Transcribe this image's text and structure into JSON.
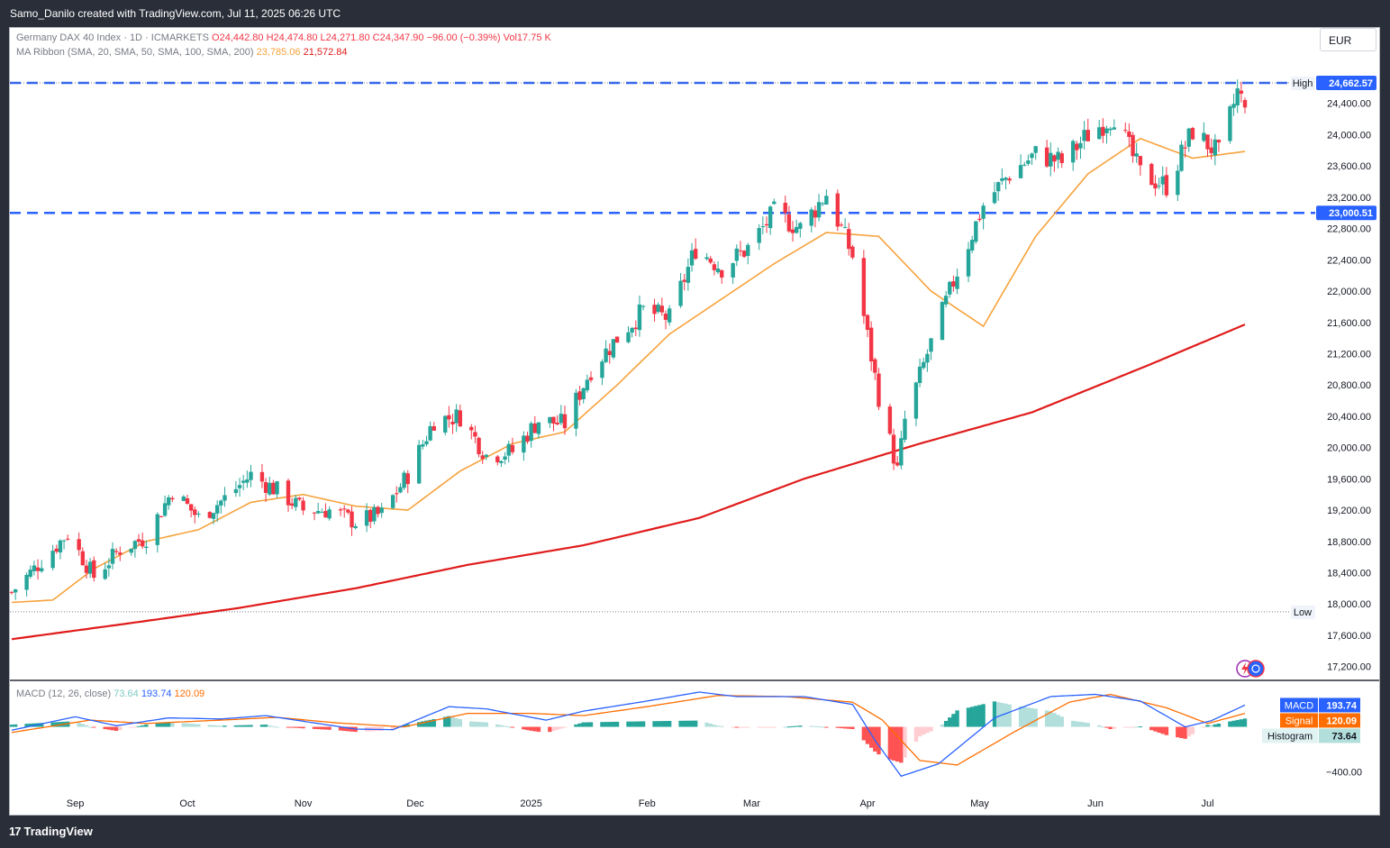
{
  "header": {
    "credit": "Samo_Danilo created with TradingView.com, Jul 11, 2025 06:26 UTC"
  },
  "legend": {
    "symbol": "Germany DAX 40 Index · 1D · ICMARKETS",
    "o_label": "O",
    "o_value": "24,442.80",
    "h_label": "H",
    "h_value": "24,474.80",
    "l_label": "L",
    "l_value": "24,271.80",
    "c_label": "C",
    "c_value": "24,347.90",
    "change": "−96.00 (−0.39%)",
    "vol_label": "Vol",
    "vol_value": "17.75 K",
    "ma_label": "MA Ribbon (SMA, 20, SMA, 50, SMA, 100, SMA, 200)",
    "ma_value1": "23,785.06",
    "ma_value2": "21,572.84"
  },
  "currency": "EUR",
  "footer": {
    "brand": "TradingView",
    "brand_mark": "17"
  },
  "colors": {
    "up": "#26a69a",
    "down": "#f23645",
    "sma20": "#f7a23c",
    "sma200": "#e01b1b",
    "level_line": "#2962ff",
    "macd_line": "#2962ff",
    "signal_line": "#ff6d00",
    "hist_up_strong": "#26a69a",
    "hist_up_weak": "#b2dfdb",
    "hist_down_strong": "#ff5252",
    "hist_down_weak": "#ffcdd2"
  },
  "chart_data": [
    {
      "type": "candlestick",
      "title": "Germany DAX 40 Index · 1D · ICMARKETS",
      "ylim": [
        17000,
        24950
      ],
      "y_ticks": [
        17200,
        17600,
        18000,
        18400,
        18800,
        19200,
        19600,
        20000,
        20400,
        20800,
        21200,
        21600,
        22000,
        22400,
        22800,
        23200,
        23600,
        24000,
        24400
      ],
      "y_tick_labels": [
        "17,200.00",
        "17,600.00",
        "18,000.00",
        "18,400.00",
        "18,800.00",
        "19,200.00",
        "19,600.00",
        "20,000.00",
        "20,400.00",
        "20,800.00",
        "21,200.00",
        "21,600.00",
        "22,000.00",
        "22,400.00",
        "22,800.00",
        "23,200.00",
        "23,600.00",
        "24,000.00",
        "24,400.00"
      ],
      "x_ticks": [
        {
          "label": "Sep",
          "date": "2024-09-01"
        },
        {
          "label": "Oct",
          "date": "2024-10-01"
        },
        {
          "label": "Nov",
          "date": "2024-11-01"
        },
        {
          "label": "Dec",
          "date": "2024-12-01"
        },
        {
          "label": "2025",
          "date": "2025-01-01"
        },
        {
          "label": "Feb",
          "date": "2025-02-01"
        },
        {
          "label": "Mar",
          "date": "2025-03-01"
        },
        {
          "label": "Apr",
          "date": "2025-04-01"
        },
        {
          "label": "May",
          "date": "2025-05-01"
        },
        {
          "label": "Jun",
          "date": "2025-06-01"
        },
        {
          "label": "Jul",
          "date": "2025-07-01"
        }
      ],
      "date_range": [
        "2024-08-15",
        "2025-07-11"
      ],
      "close_path": [
        [
          "2024-08-15",
          18150
        ],
        [
          "2024-08-22",
          18500
        ],
        [
          "2024-08-30",
          18900
        ],
        [
          "2024-09-06",
          18350
        ],
        [
          "2024-09-13",
          18700
        ],
        [
          "2024-09-20",
          18850
        ],
        [
          "2024-09-27",
          19450
        ],
        [
          "2024-10-04",
          19100
        ],
        [
          "2024-10-11",
          19350
        ],
        [
          "2024-10-18",
          19650
        ],
        [
          "2024-10-25",
          19450
        ],
        [
          "2024-11-01",
          19200
        ],
        [
          "2024-11-08",
          19200
        ],
        [
          "2024-11-15",
          19050
        ],
        [
          "2024-11-22",
          19150
        ],
        [
          "2024-11-29",
          19650
        ],
        [
          "2024-12-06",
          20350
        ],
        [
          "2024-12-13",
          20400
        ],
        [
          "2024-12-20",
          19900
        ],
        [
          "2024-12-27",
          19950
        ],
        [
          "2025-01-03",
          20350
        ],
        [
          "2025-01-10",
          20300
        ],
        [
          "2025-01-17",
          21000
        ],
        [
          "2025-01-24",
          21400
        ],
        [
          "2025-01-31",
          21750
        ],
        [
          "2025-02-07",
          21650
        ],
        [
          "2025-02-14",
          22550
        ],
        [
          "2025-02-21",
          22300
        ],
        [
          "2025-02-28",
          22550
        ],
        [
          "2025-03-07",
          23000
        ],
        [
          "2025-03-14",
          22800
        ],
        [
          "2025-03-21",
          23250
        ],
        [
          "2025-03-28",
          22450
        ],
        [
          "2025-04-04",
          20650
        ],
        [
          "2025-04-09",
          19700
        ],
        [
          "2025-04-11",
          20350
        ],
        [
          "2025-04-17",
          21200
        ],
        [
          "2025-04-25",
          22250
        ],
        [
          "2025-05-02",
          23100
        ],
        [
          "2025-05-09",
          23500
        ],
        [
          "2025-05-16",
          23750
        ],
        [
          "2025-05-23",
          23650
        ],
        [
          "2025-05-30",
          24000
        ],
        [
          "2025-06-06",
          24250
        ],
        [
          "2025-06-13",
          23500
        ],
        [
          "2025-06-20",
          23350
        ],
        [
          "2025-06-27",
          24050
        ],
        [
          "2025-07-04",
          23750
        ],
        [
          "2025-07-09",
          24550
        ],
        [
          "2025-07-11",
          24350
        ]
      ],
      "last_candle": {
        "date": "2025-07-11",
        "open": 24442.8,
        "high": 24474.8,
        "low": 24271.8,
        "close": 24347.9
      },
      "series": [
        {
          "name": "MA Ribbon SMA 20",
          "last_value": 23785.06,
          "values": [
            [
              "2024-08-15",
              18020
            ],
            [
              "2024-08-26",
              18050
            ],
            [
              "2024-09-06",
              18450
            ],
            [
              "2024-09-20",
              18800
            ],
            [
              "2024-10-04",
              18950
            ],
            [
              "2024-10-18",
              19300
            ],
            [
              "2024-11-01",
              19400
            ],
            [
              "2024-11-15",
              19250
            ],
            [
              "2024-11-29",
              19200
            ],
            [
              "2024-12-13",
              19700
            ],
            [
              "2024-12-27",
              20050
            ],
            [
              "2025-01-10",
              20200
            ],
            [
              "2025-01-24",
              20800
            ],
            [
              "2025-02-07",
              21450
            ],
            [
              "2025-02-21",
              21900
            ],
            [
              "2025-03-07",
              22350
            ],
            [
              "2025-03-21",
              22750
            ],
            [
              "2025-04-04",
              22700
            ],
            [
              "2025-04-18",
              22000
            ],
            [
              "2025-05-02",
              21550
            ],
            [
              "2025-05-16",
              22700
            ],
            [
              "2025-05-30",
              23500
            ],
            [
              "2025-06-13",
              23950
            ],
            [
              "2025-06-27",
              23700
            ],
            [
              "2025-07-11",
              23785
            ]
          ]
        },
        {
          "name": "MA Ribbon SMA 200",
          "last_value": 21572.84,
          "values": [
            [
              "2024-08-15",
              17550
            ],
            [
              "2024-09-15",
              17750
            ],
            [
              "2024-10-15",
              17950
            ],
            [
              "2024-11-15",
              18200
            ],
            [
              "2024-12-15",
              18500
            ],
            [
              "2025-01-15",
              18750
            ],
            [
              "2025-02-15",
              19100
            ],
            [
              "2025-03-15",
              19600
            ],
            [
              "2025-04-15",
              20050
            ],
            [
              "2025-05-15",
              20450
            ],
            [
              "2025-06-15",
              21050
            ],
            [
              "2025-07-11",
              21573
            ]
          ]
        }
      ],
      "levels": [
        {
          "value": 24662.57,
          "label": "24,662.57",
          "style": "dashed"
        },
        {
          "value": 23000.51,
          "label": "23,000.51",
          "style": "dashed"
        },
        {
          "value": 24662.57,
          "label": "High",
          "style": "dotted"
        },
        {
          "value": 17900,
          "label": "Low",
          "style": "dotted"
        }
      ]
    },
    {
      "type": "macd",
      "title": "MACD (12, 26, close)",
      "params": "(12, 26, close)",
      "last": {
        "histogram": 73.64,
        "macd": 193.74,
        "signal": 120.09
      },
      "last_text": {
        "histogram": "73.64",
        "macd": "193.74",
        "signal": "120.09"
      },
      "ylim": [
        -550,
        350
      ],
      "y_ticks": [
        -400
      ],
      "y_tick_labels": [
        "−400.00"
      ],
      "label_names": {
        "macd": "MACD",
        "signal": "Signal",
        "histogram": "Histogram"
      },
      "macd_path": [
        [
          "2024-08-15",
          -30
        ],
        [
          "2024-09-01",
          90
        ],
        [
          "2024-09-12",
          10
        ],
        [
          "2024-09-26",
          80
        ],
        [
          "2024-10-10",
          70
        ],
        [
          "2024-10-22",
          100
        ],
        [
          "2024-11-01",
          50
        ],
        [
          "2024-11-15",
          -20
        ],
        [
          "2024-11-25",
          -25
        ],
        [
          "2024-12-10",
          180
        ],
        [
          "2024-12-20",
          160
        ],
        [
          "2025-01-05",
          60
        ],
        [
          "2025-01-15",
          140
        ],
        [
          "2025-02-01",
          230
        ],
        [
          "2025-02-15",
          310
        ],
        [
          "2025-02-25",
          270
        ],
        [
          "2025-03-15",
          270
        ],
        [
          "2025-03-28",
          200
        ],
        [
          "2025-04-03",
          -120
        ],
        [
          "2025-04-10",
          -440
        ],
        [
          "2025-04-20",
          -330
        ],
        [
          "2025-05-05",
          80
        ],
        [
          "2025-05-20",
          270
        ],
        [
          "2025-06-01",
          290
        ],
        [
          "2025-06-13",
          230
        ],
        [
          "2025-06-25",
          0
        ],
        [
          "2025-07-02",
          55
        ],
        [
          "2025-07-11",
          194
        ]
      ],
      "signal_path": [
        [
          "2024-08-15",
          -50
        ],
        [
          "2024-09-05",
          60
        ],
        [
          "2024-09-20",
          30
        ],
        [
          "2024-10-10",
          60
        ],
        [
          "2024-10-25",
          85
        ],
        [
          "2024-11-10",
          35
        ],
        [
          "2024-11-28",
          0
        ],
        [
          "2024-12-15",
          120
        ],
        [
          "2025-01-01",
          120
        ],
        [
          "2025-01-15",
          100
        ],
        [
          "2025-02-01",
          180
        ],
        [
          "2025-02-20",
          280
        ],
        [
          "2025-03-10",
          270
        ],
        [
          "2025-03-28",
          220
        ],
        [
          "2025-04-05",
          60
        ],
        [
          "2025-04-15",
          -300
        ],
        [
          "2025-04-25",
          -340
        ],
        [
          "2025-05-10",
          -50
        ],
        [
          "2025-05-25",
          220
        ],
        [
          "2025-06-05",
          290
        ],
        [
          "2025-06-20",
          170
        ],
        [
          "2025-07-01",
          30
        ],
        [
          "2025-07-11",
          120
        ]
      ]
    }
  ]
}
